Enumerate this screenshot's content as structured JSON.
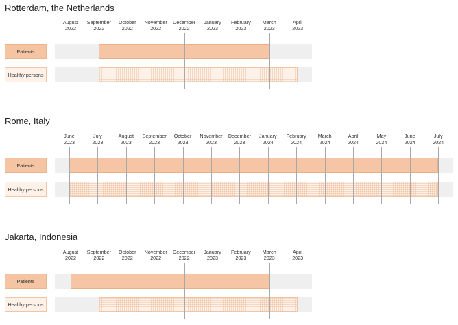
{
  "panels": [
    {
      "title": "Rotterdam, the Netherlands",
      "ticks": [
        {
          "month": "August",
          "year": "2022"
        },
        {
          "month": "September",
          "year": "2022"
        },
        {
          "month": "October",
          "year": "2022"
        },
        {
          "month": "November",
          "year": "2022"
        },
        {
          "month": "December",
          "year": "2022"
        },
        {
          "month": "January",
          "year": "2023"
        },
        {
          "month": "February",
          "year": "2023"
        },
        {
          "month": "March",
          "year": "2023"
        },
        {
          "month": "April",
          "year": "2023"
        }
      ],
      "rows": [
        {
          "label": "Patients",
          "kind": "patients",
          "start_month": 1,
          "end_month": 7
        },
        {
          "label": "Healthy persons",
          "kind": "healthy",
          "start_month": 1,
          "end_month": 8
        }
      ]
    },
    {
      "title": "Rome, Italy",
      "ticks": [
        {
          "month": "June",
          "year": "2023"
        },
        {
          "month": "July",
          "year": "2023"
        },
        {
          "month": "August",
          "year": "2023"
        },
        {
          "month": "September",
          "year": "2023"
        },
        {
          "month": "October",
          "year": "2023"
        },
        {
          "month": "November",
          "year": "2023"
        },
        {
          "month": "December",
          "year": "2023"
        },
        {
          "month": "January",
          "year": "2024"
        },
        {
          "month": "February",
          "year": "2024"
        },
        {
          "month": "March",
          "year": "2024"
        },
        {
          "month": "April",
          "year": "2024"
        },
        {
          "month": "May",
          "year": "2024"
        },
        {
          "month": "June",
          "year": "2024"
        },
        {
          "month": "July",
          "year": "2024"
        }
      ],
      "rows": [
        {
          "label": "Patients",
          "kind": "patients",
          "start_month": 0,
          "end_month": 13
        },
        {
          "label": "Healthy persons",
          "kind": "healthy",
          "start_month": 0,
          "end_month": 13
        }
      ]
    },
    {
      "title": "Jakarta, Indonesia",
      "ticks": [
        {
          "month": "August",
          "year": "2022"
        },
        {
          "month": "September",
          "year": "2022"
        },
        {
          "month": "October",
          "year": "2022"
        },
        {
          "month": "November",
          "year": "2022"
        },
        {
          "month": "December",
          "year": "2022"
        },
        {
          "month": "January",
          "year": "2023"
        },
        {
          "month": "February",
          "year": "2023"
        },
        {
          "month": "March",
          "year": "2023"
        },
        {
          "month": "April",
          "year": "2023"
        }
      ],
      "rows": [
        {
          "label": "Patients",
          "kind": "patients",
          "start_month": 0,
          "end_month": 7
        },
        {
          "label": "Healthy persons",
          "kind": "healthy",
          "start_month": 1,
          "end_month": 8
        }
      ]
    }
  ],
  "colors": {
    "patients": "#f5c5a5",
    "healthy": "#fdf1e8",
    "track": "#efefef",
    "gridline": "#a9a9a9"
  }
}
